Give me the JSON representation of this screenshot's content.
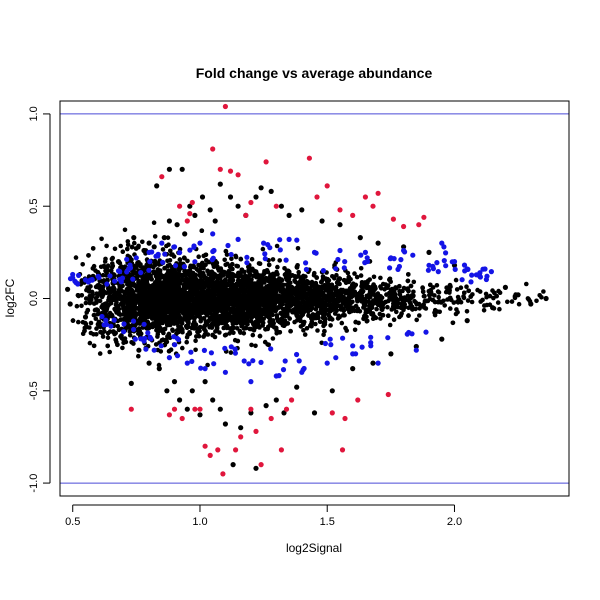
{
  "chart_data": {
    "type": "scatter",
    "title": "Fold change vs average abundance",
    "xlabel": "log2Signal",
    "ylabel": "log2FC",
    "xlim": [
      0.45,
      2.45
    ],
    "ylim": [
      -1.07,
      1.07
    ],
    "x_ticks": [
      0.5,
      1.0,
      1.5,
      2.0
    ],
    "x_tick_labels": [
      "0.5",
      "1.0",
      "1.5",
      "2.0"
    ],
    "y_ticks": [
      -1.0,
      -0.5,
      0.0,
      0.5,
      1.0
    ],
    "y_tick_labels": [
      "-1.0",
      "-0.5",
      "0.0",
      "0.5",
      "1.0"
    ],
    "grid": false,
    "reference_lines": [
      {
        "y": 1.0,
        "color": "#4a4ad6"
      },
      {
        "y": -1.0,
        "color": "#4a4ad6"
      }
    ],
    "series": [
      {
        "color": "#000000",
        "points": [
          [
            0.48,
            0.05
          ],
          [
            0.49,
            -0.03
          ],
          [
            0.52,
            0.08
          ],
          [
            0.55,
            -0.1
          ],
          [
            0.58,
            0.12
          ],
          [
            0.6,
            -0.14
          ],
          [
            0.63,
            0.15
          ],
          [
            0.66,
            -0.18
          ],
          [
            0.68,
            0.2
          ],
          [
            0.7,
            -0.22
          ],
          [
            0.72,
            0.22
          ],
          [
            0.73,
            -0.46
          ],
          [
            0.74,
            0.33
          ],
          [
            0.76,
            -0.28
          ],
          [
            0.78,
            0.26
          ],
          [
            0.8,
            0.3
          ],
          [
            0.8,
            -0.35
          ],
          [
            0.82,
            0.28
          ],
          [
            0.83,
            0.61
          ],
          [
            0.84,
            -0.38
          ],
          [
            0.86,
            0.33
          ],
          [
            0.87,
            -0.5
          ],
          [
            0.88,
            0.42
          ],
          [
            0.88,
            0.7
          ],
          [
            0.9,
            -0.45
          ],
          [
            0.91,
            0.4
          ],
          [
            0.92,
            -0.55
          ],
          [
            0.93,
            0.7
          ],
          [
            0.94,
            0.35
          ],
          [
            0.95,
            -0.6
          ],
          [
            0.96,
            0.5
          ],
          [
            0.97,
            -0.5
          ],
          [
            0.98,
            0.45
          ],
          [
            1.0,
            -0.63
          ],
          [
            1.01,
            0.55
          ],
          [
            1.02,
            -0.45
          ],
          [
            1.04,
            0.48
          ],
          [
            1.05,
            -0.55
          ],
          [
            1.06,
            0.42
          ],
          [
            1.08,
            -0.6
          ],
          [
            1.08,
            0.62
          ],
          [
            1.1,
            -0.68
          ],
          [
            1.12,
            0.55
          ],
          [
            1.13,
            -0.9
          ],
          [
            1.15,
            0.5
          ],
          [
            1.16,
            -0.7
          ],
          [
            1.18,
            0.45
          ],
          [
            1.2,
            -0.62
          ],
          [
            1.22,
            0.55
          ],
          [
            1.22,
            -0.92
          ],
          [
            1.24,
            0.6
          ],
          [
            1.26,
            -0.58
          ],
          [
            1.28,
            0.58
          ],
          [
            1.3,
            -0.55
          ],
          [
            1.32,
            0.5
          ],
          [
            1.33,
            -0.62
          ],
          [
            1.35,
            0.45
          ],
          [
            1.38,
            -0.48
          ],
          [
            1.4,
            0.48
          ],
          [
            1.45,
            -0.62
          ],
          [
            1.48,
            0.42
          ],
          [
            1.52,
            -0.5
          ],
          [
            1.55,
            0.4
          ],
          [
            1.6,
            -0.38
          ],
          [
            1.63,
            0.33
          ],
          [
            1.68,
            -0.35
          ],
          [
            1.7,
            0.3
          ],
          [
            1.75,
            -0.3
          ],
          [
            1.8,
            0.28
          ],
          [
            1.85,
            -0.26
          ],
          [
            1.9,
            0.25
          ],
          [
            1.95,
            -0.22
          ],
          [
            2.0,
            0.18
          ],
          [
            2.05,
            -0.12
          ],
          [
            2.1,
            0.12
          ],
          [
            2.15,
            -0.05
          ],
          [
            2.2,
            0.06
          ],
          [
            2.25,
            0.02
          ],
          [
            2.3,
            -0.03
          ],
          [
            2.36,
            0.0
          ]
        ]
      },
      {
        "color": "#1414e6",
        "points": [
          [
            0.5,
            0.13
          ],
          [
            0.55,
            0.1
          ],
          [
            0.6,
            0.12
          ],
          [
            0.65,
            -0.15
          ],
          [
            0.68,
            0.15
          ],
          [
            0.7,
            -0.18
          ],
          [
            0.72,
            0.16
          ],
          [
            0.75,
            0.22
          ],
          [
            0.78,
            -0.23
          ],
          [
            0.8,
            0.25
          ],
          [
            0.82,
            -0.28
          ],
          [
            0.85,
            0.3
          ],
          [
            0.88,
            -0.32
          ],
          [
            0.9,
            0.28
          ],
          [
            0.95,
            -0.35
          ],
          [
            1.0,
            0.3
          ],
          [
            1.02,
            -0.38
          ],
          [
            1.05,
            0.35
          ],
          [
            1.1,
            -0.4
          ],
          [
            1.15,
            0.32
          ],
          [
            1.2,
            -0.45
          ],
          [
            1.25,
            0.3
          ],
          [
            1.3,
            -0.42
          ],
          [
            1.35,
            0.32
          ],
          [
            1.4,
            -0.4
          ],
          [
            1.45,
            0.25
          ],
          [
            1.5,
            -0.35
          ],
          [
            1.55,
            0.26
          ],
          [
            1.6,
            -0.3
          ],
          [
            1.65,
            0.25
          ],
          [
            1.7,
            -0.35
          ],
          [
            1.75,
            0.22
          ],
          [
            1.8,
            0.26
          ],
          [
            1.85,
            -0.28
          ],
          [
            1.9,
            0.18
          ],
          [
            1.95,
            0.3
          ],
          [
            2.0,
            0.2
          ],
          [
            2.05,
            0.16
          ],
          [
            2.1,
            0.14
          ],
          [
            2.12,
            0.16
          ]
        ]
      },
      {
        "color": "#e0163c",
        "points": [
          [
            0.73,
            -0.6
          ],
          [
            0.85,
            0.66
          ],
          [
            0.88,
            -0.63
          ],
          [
            0.9,
            -0.6
          ],
          [
            0.92,
            0.5
          ],
          [
            0.93,
            -0.65
          ],
          [
            0.95,
            0.42
          ],
          [
            0.96,
            0.46
          ],
          [
            0.97,
            0.52
          ],
          [
            0.98,
            -0.6
          ],
          [
            1.0,
            -0.6
          ],
          [
            1.02,
            -0.8
          ],
          [
            1.04,
            -0.85
          ],
          [
            1.05,
            0.81
          ],
          [
            1.07,
            -0.82
          ],
          [
            1.08,
            0.7
          ],
          [
            1.09,
            -0.95
          ],
          [
            1.1,
            1.04
          ],
          [
            1.12,
            0.69
          ],
          [
            1.14,
            -0.82
          ],
          [
            1.15,
            0.67
          ],
          [
            1.16,
            -0.75
          ],
          [
            1.18,
            0.45
          ],
          [
            1.2,
            -0.6
          ],
          [
            1.22,
            -0.72
          ],
          [
            1.24,
            -0.9
          ],
          [
            1.26,
            0.74
          ],
          [
            1.28,
            -0.65
          ],
          [
            1.3,
            0.5
          ],
          [
            1.32,
            -0.82
          ],
          [
            1.34,
            -0.6
          ],
          [
            1.36,
            -0.55
          ],
          [
            1.43,
            0.76
          ],
          [
            1.5,
            0.61
          ],
          [
            1.52,
            -0.62
          ],
          [
            1.56,
            -0.82
          ],
          [
            1.57,
            -0.65
          ],
          [
            1.6,
            0.45
          ],
          [
            1.65,
            0.55
          ],
          [
            1.68,
            0.5
          ],
          [
            1.7,
            0.57
          ],
          [
            1.76,
            0.43
          ],
          [
            1.8,
            0.39
          ],
          [
            1.88,
            0.44
          ],
          [
            1.62,
            -0.55
          ],
          [
            1.74,
            -0.52
          ],
          [
            1.55,
            0.48
          ],
          [
            1.2,
            0.52
          ],
          [
            1.46,
            0.55
          ],
          [
            1.86,
            0.4
          ]
        ]
      }
    ],
    "background_cloud": {
      "color": "#000000",
      "description_of_shape": "dense band around log2FC 0",
      "x_range": [
        0.48,
        2.36
      ],
      "count": 4500
    }
  }
}
